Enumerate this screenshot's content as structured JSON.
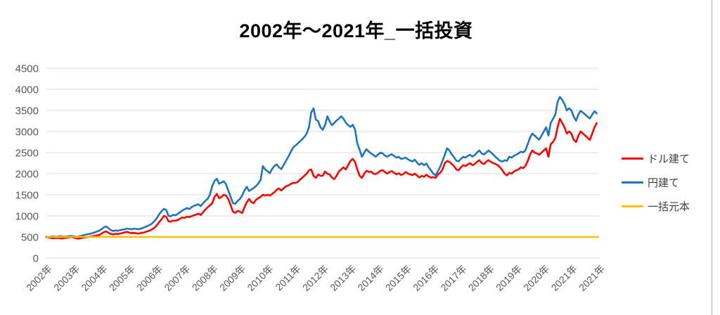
{
  "title": "2002年〜2021年_一括投資",
  "legend": [
    {
      "label": "ドル建て",
      "color": "#FF0000"
    },
    {
      "label": "円建て",
      "color": "#1F74BB"
    },
    {
      "label": "一括元本",
      "color": "#FFC000"
    }
  ],
  "colors": {
    "gridline": "#d9d9d9",
    "axis_text": "#595959",
    "title_text": "#000000",
    "background": "#ffffff"
  },
  "chart_data": {
    "type": "line",
    "title": "2002年〜2021年_一括投資",
    "xlabel": "",
    "ylabel": "",
    "ylim": [
      0,
      4500
    ],
    "y_ticks": [
      0,
      500,
      1000,
      1500,
      2000,
      2500,
      3000,
      3500,
      4000,
      4500
    ],
    "x_tick_labels": [
      "2002年",
      "2003年",
      "2004年",
      "2005年",
      "2006年",
      "2007年",
      "2008年",
      "2009年",
      "2010年",
      "2011年",
      "2012年",
      "2013年",
      "2014年",
      "2015年",
      "2016年",
      "2017年",
      "2018年",
      "2019年",
      "2020年",
      "2021年",
      "2021年"
    ],
    "x_frequency": "monthly",
    "x_start_year": 2002,
    "x_end_year": 2021,
    "grid": "horizontal",
    "legend_position": "right",
    "series": [
      {
        "name": "ドル建て",
        "color": "#FF0000",
        "values": [
          500,
          488,
          475,
          466,
          472,
          480,
          470,
          462,
          476,
          482,
          490,
          496,
          482,
          466,
          460,
          472,
          482,
          492,
          497,
          506,
          516,
          526,
          536,
          546,
          582,
          616,
          630,
          600,
          572,
          562,
          576,
          566,
          582,
          592,
          610,
          622,
          602,
          590,
          596,
          586,
          580,
          592,
          602,
          616,
          636,
          656,
          682,
          722,
          782,
          855,
          920,
          1000,
          978,
          872,
          862,
          892,
          882,
          902,
          932,
          962,
          952,
          982,
          972,
          992,
          1012,
          1032,
          1052,
          1022,
          1082,
          1152,
          1202,
          1250,
          1300,
          1450,
          1520,
          1420,
          1450,
          1500,
          1480,
          1400,
          1250,
          1100,
          1070,
          1120,
          1100,
          1067,
          1200,
          1320,
          1400,
          1330,
          1300,
          1380,
          1420,
          1450,
          1500,
          1480,
          1500,
          1480,
          1520,
          1560,
          1620,
          1650,
          1600,
          1650,
          1700,
          1720,
          1750,
          1780,
          1780,
          1800,
          1850,
          1900,
          1950,
          2000,
          2080,
          2100,
          1950,
          1900,
          1980,
          1950,
          1950,
          2050,
          2000,
          1980,
          1905,
          1870,
          1950,
          2050,
          2100,
          2150,
          2100,
          2200,
          2300,
          2350,
          2280,
          2100,
          1950,
          1900,
          2000,
          2070,
          2040,
          2050,
          2000,
          1990,
          2020,
          2070,
          2080,
          2040,
          2000,
          2040,
          2060,
          2020,
          1985,
          2010,
          1970,
          1990,
          2040,
          2000,
          1985,
          1965,
          2000,
          1955,
          1910,
          1950,
          1925,
          1975,
          1935,
          1905,
          1920,
          1900,
          1980,
          2020,
          2100,
          2250,
          2300,
          2280,
          2230,
          2180,
          2100,
          2080,
          2150,
          2200,
          2180,
          2220,
          2250,
          2200,
          2230,
          2280,
          2320,
          2250,
          2230,
          2280,
          2320,
          2280,
          2250,
          2230,
          2200,
          2150,
          2080,
          2000,
          1960,
          2020,
          2000,
          2050,
          2080,
          2100,
          2150,
          2130,
          2180,
          2300,
          2450,
          2550,
          2500,
          2480,
          2450,
          2500,
          2550,
          2600,
          2400,
          2700,
          2750,
          2850,
          3100,
          3300,
          3200,
          3100,
          2950,
          3000,
          2950,
          2800,
          2750,
          2900,
          3000,
          2950,
          2900,
          2850,
          2800,
          2950,
          3100,
          3200
        ]
      },
      {
        "name": "円建て",
        "color": "#1F74BB",
        "values": [
          505,
          498,
          508,
          512,
          505,
          510,
          518,
          512,
          506,
          514,
          520,
          524,
          515,
          500,
          510,
          525,
          540,
          555,
          565,
          575,
          590,
          610,
          630,
          650,
          685,
          730,
          748,
          705,
          660,
          642,
          655,
          645,
          662,
          672,
          682,
          700,
          692,
          680,
          698,
          690,
          684,
          698,
          715,
          738,
          762,
          790,
          825,
          880,
          950,
          1040,
          1110,
          1165,
          1145,
          1000,
          990,
          1025,
          1012,
          1045,
          1085,
          1125,
          1155,
          1185,
          1160,
          1205,
          1235,
          1255,
          1275,
          1230,
          1295,
          1355,
          1405,
          1500,
          1700,
          1830,
          1880,
          1760,
          1790,
          1820,
          1750,
          1600,
          1450,
          1300,
          1285,
          1350,
          1400,
          1480,
          1600,
          1690,
          1590,
          1625,
          1660,
          1705,
          1765,
          1850,
          2180,
          2100,
          2060,
          2010,
          2110,
          2180,
          2220,
          2150,
          2110,
          2205,
          2300,
          2400,
          2500,
          2610,
          2660,
          2710,
          2760,
          2810,
          2870,
          2950,
          3100,
          3450,
          3550,
          3280,
          3250,
          3100,
          3040,
          3150,
          3360,
          3240,
          3150,
          3200,
          3260,
          3300,
          3360,
          3300,
          3210,
          3150,
          3110,
          3160,
          3050,
          2720,
          2570,
          2400,
          2500,
          2580,
          2520,
          2480,
          2440,
          2400,
          2450,
          2500,
          2480,
          2430,
          2400,
          2440,
          2460,
          2420,
          2380,
          2400,
          2350,
          2360,
          2380,
          2340,
          2310,
          2290,
          2330,
          2260,
          2210,
          2250,
          2200,
          2240,
          2150,
          2080,
          2000,
          1960,
          2060,
          2160,
          2300,
          2450,
          2600,
          2550,
          2460,
          2390,
          2310,
          2290,
          2350,
          2400,
          2380,
          2420,
          2450,
          2405,
          2440,
          2500,
          2550,
          2480,
          2455,
          2500,
          2550,
          2505,
          2455,
          2400,
          2350,
          2305,
          2285,
          2320,
          2305,
          2400,
          2380,
          2420,
          2450,
          2480,
          2520,
          2505,
          2550,
          2700,
          2850,
          2950,
          2905,
          2850,
          2805,
          2900,
          3000,
          3100,
          2905,
          3200,
          3300,
          3400,
          3700,
          3820,
          3750,
          3650,
          3500,
          3550,
          3500,
          3350,
          3255,
          3400,
          3490,
          3445,
          3400,
          3350,
          3310,
          3400,
          3480,
          3430
        ]
      },
      {
        "name": "一括元本",
        "color": "#FFC000",
        "constant_value": 500
      }
    ]
  }
}
